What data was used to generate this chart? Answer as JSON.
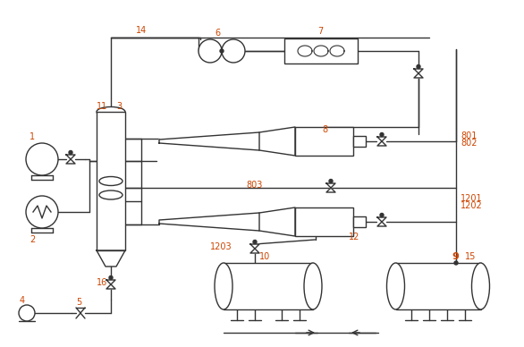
{
  "bg_color": "#ffffff",
  "line_color": "#333333",
  "label_color": "#cc4400",
  "figsize": [
    5.86,
    3.88
  ],
  "dpi": 100
}
